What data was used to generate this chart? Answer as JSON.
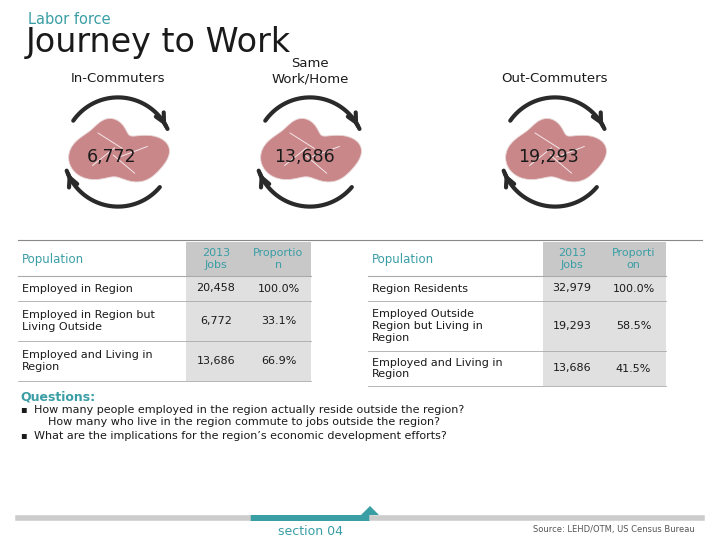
{
  "title_small": "Labor force",
  "title_large": "Journey to Work",
  "title_small_color": "#3A9EA5",
  "title_large_color": "#1a1a1a",
  "bg_color": "#FFFFFF",
  "section_labels": [
    "In-Commuters",
    "Same\nWork/Home",
    "Out-Commuters"
  ],
  "section_numbers": [
    "6,772",
    "13,686",
    "19,293"
  ],
  "section_label_color": "#1a1a1a",
  "left_table_header": [
    "Population",
    "2013\nJobs",
    "Proportio\nn"
  ],
  "left_table_rows": [
    [
      "Employed in Region",
      "20,458",
      "100.0%"
    ],
    [
      "Employed in Region but\nLiving Outside",
      "6,772",
      "33.1%"
    ],
    [
      "Employed and Living in\nRegion",
      "13,686",
      "66.9%"
    ]
  ],
  "right_table_header": [
    "Population",
    "2013\nJobs",
    "Proporti\non"
  ],
  "right_table_rows": [
    [
      "Region Residents",
      "32,979",
      "100.0%"
    ],
    [
      "Employed Outside\nRegion but Living in\nRegion",
      "19,293",
      "58.5%"
    ],
    [
      "Employed and Living in\nRegion",
      "13,686",
      "41.5%"
    ]
  ],
  "questions_label": "Questions:",
  "questions_color": "#3A9EA5",
  "questions_text": [
    "How many people employed in the region actually reside outside the region?\n    How many who live in the region commute to jobs outside the region?",
    "What are the implications for the region’s economic development efforts?"
  ],
  "footer_section": "section 04",
  "footer_source": "Source: LEHD/OTM, US Census Bureau",
  "footer_teal": "#3A9EA5",
  "map_color": "#C9878A",
  "arrow_color": "#2a2a2a",
  "number_color": "#1a1a1a",
  "table_header_bg": "#C8C8C8",
  "table_row_bg_alt": "#E0E0E0",
  "table_divider_color": "#AAAAAA",
  "teal_color": "#3A9EA5"
}
